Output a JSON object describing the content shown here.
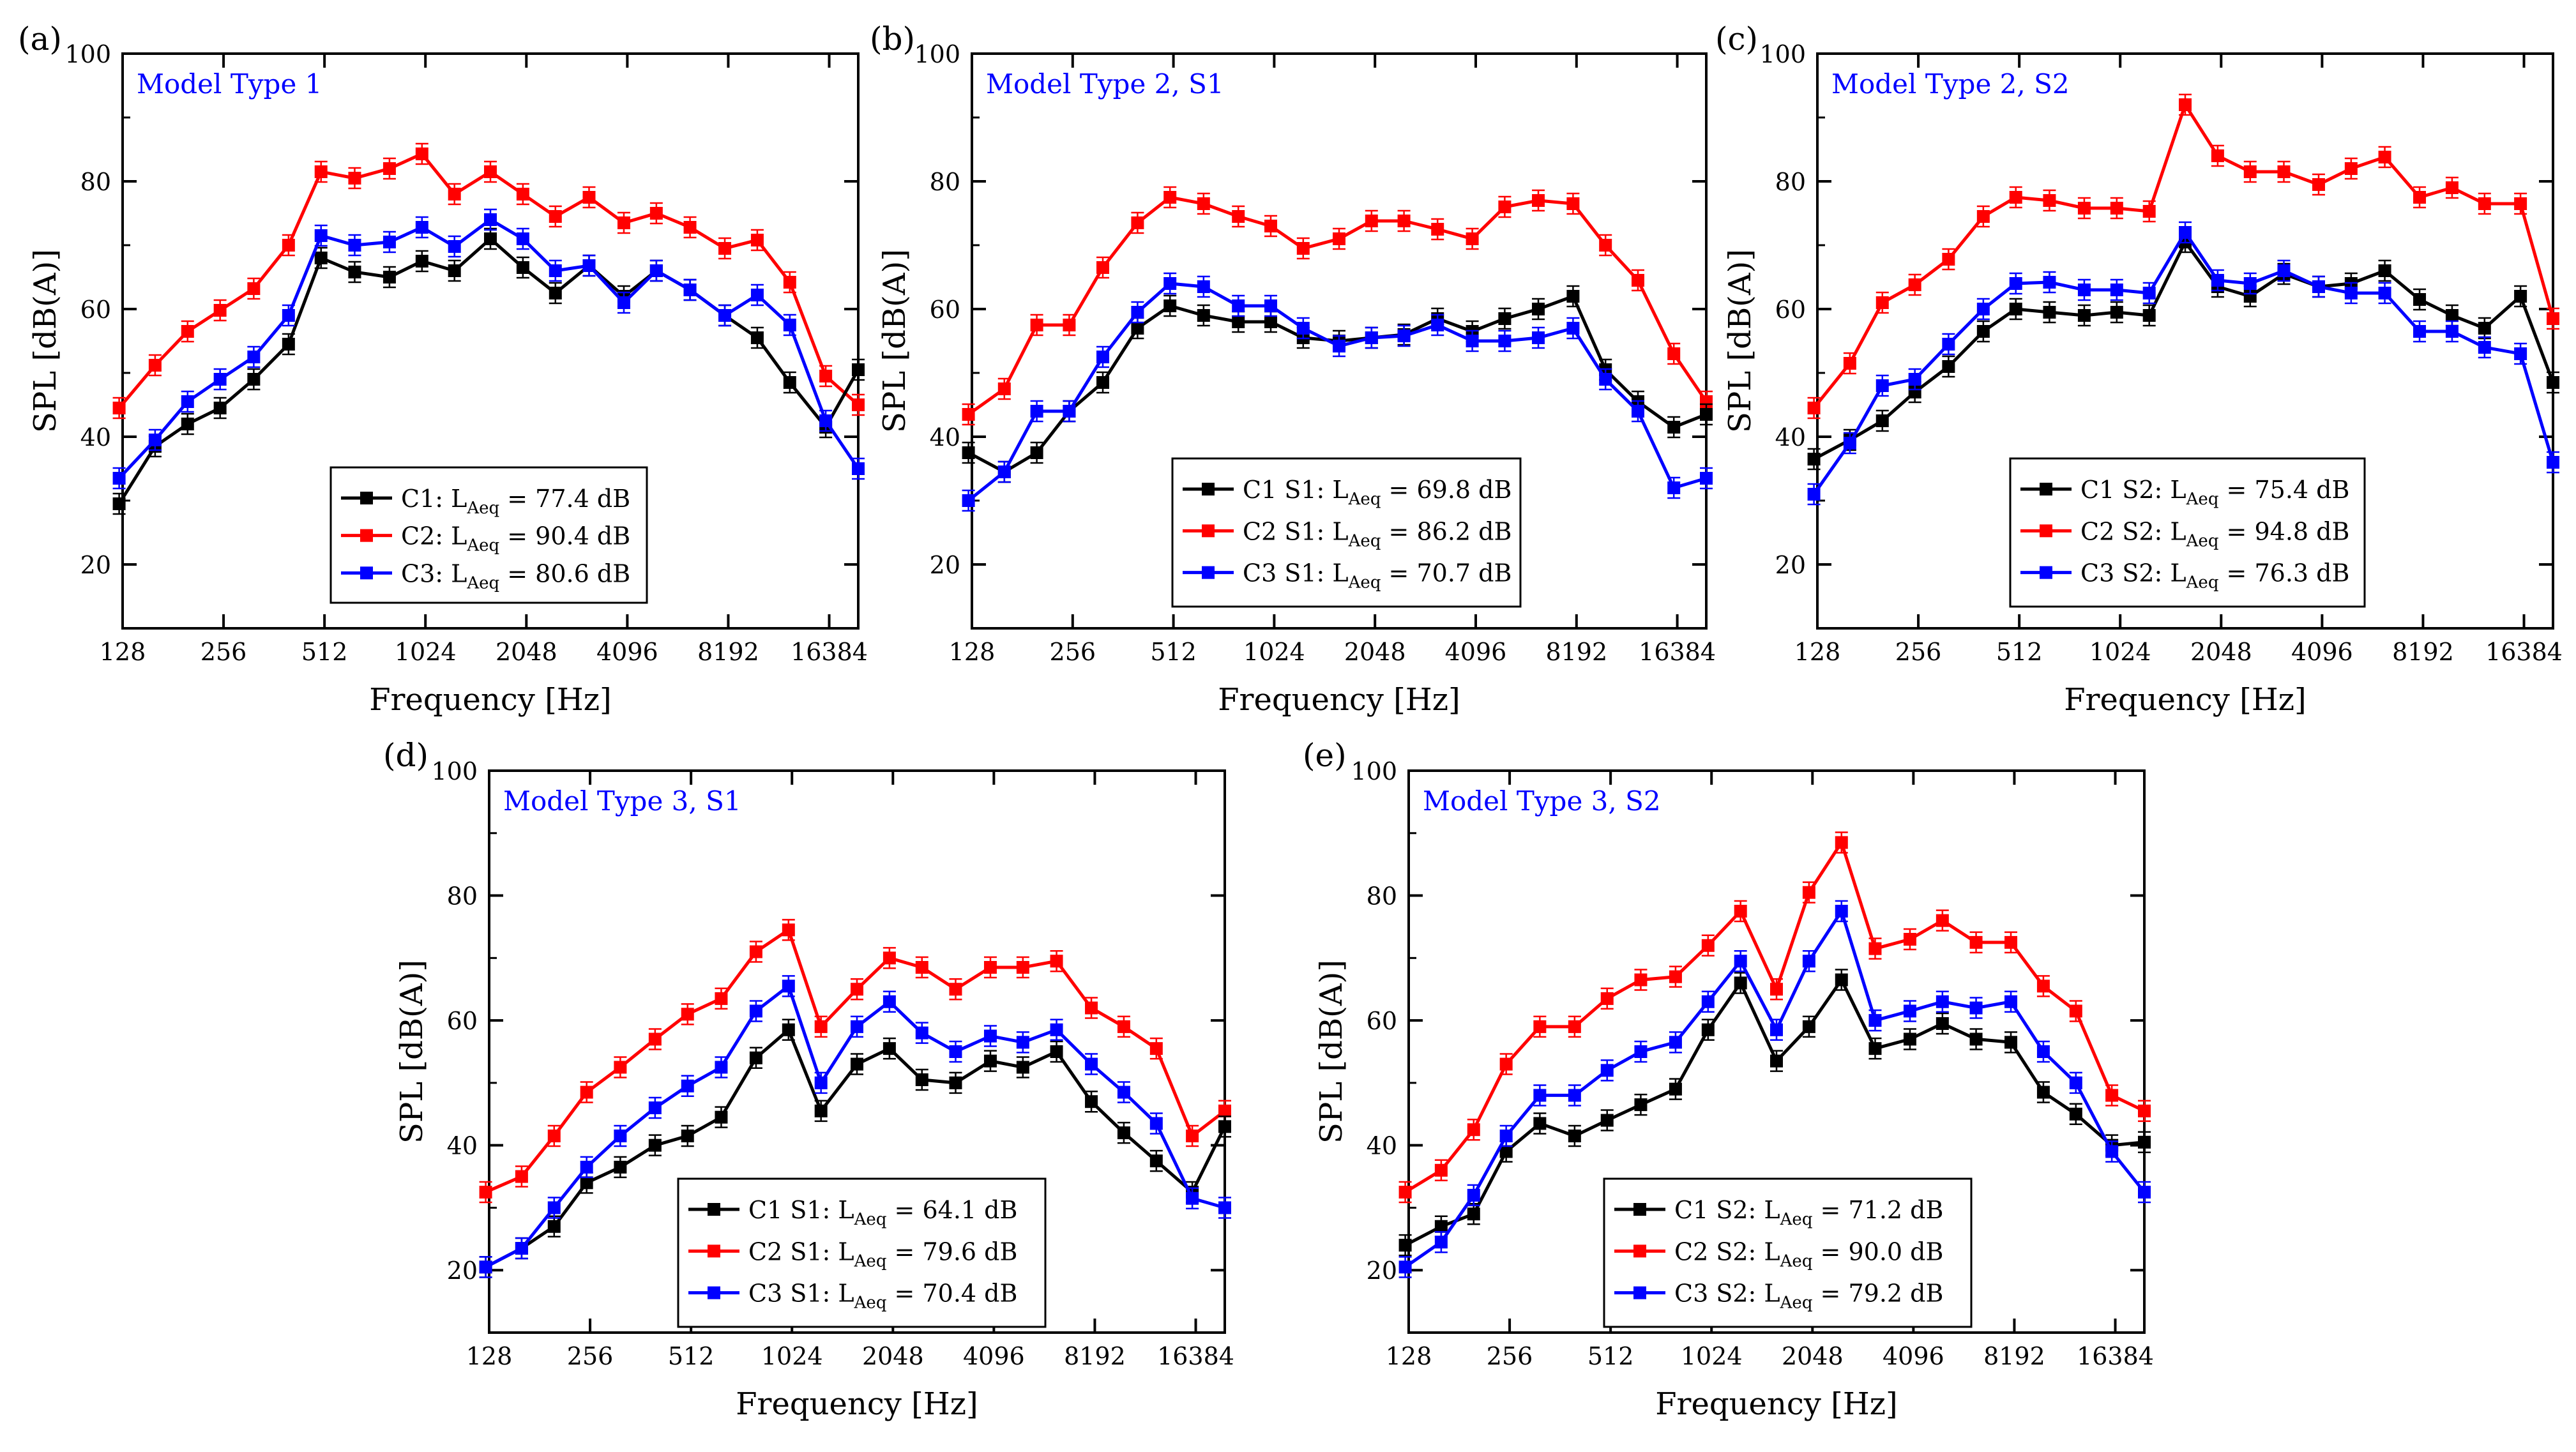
{
  "figure": {
    "x_ticks": [
      "128",
      "256",
      "512",
      "1024",
      "2048",
      "4096",
      "8192",
      "16384"
    ],
    "y_ticks": [
      20,
      40,
      60,
      80,
      100
    ]
  },
  "chart_data": [
    {
      "panel": "(a)",
      "type": "line",
      "title": "Model Type 1",
      "xlabel": "Frequency [Hz]",
      "ylabel": "SPL [dB(A)]",
      "xscale": "log2",
      "xlim": [
        128,
        20000
      ],
      "ylim": [
        10,
        100
      ],
      "legend_position": "bottom-center",
      "x": [
        125,
        160,
        200,
        250,
        315,
        400,
        500,
        630,
        800,
        1000,
        1250,
        1600,
        2000,
        2500,
        3150,
        4000,
        5000,
        6300,
        8000,
        10000,
        12500,
        16000,
        20000
      ],
      "series": [
        {
          "name": "C1",
          "label": "C1: ",
          "leq": " = 77.4 dB",
          "color": "#000000",
          "values": [
            29.5,
            38.5,
            42,
            44.5,
            49,
            54.5,
            68,
            65.8,
            65,
            67.5,
            66,
            71,
            66.5,
            62.5,
            66.8,
            62,
            66,
            63,
            59,
            55.5,
            48.5,
            41.5,
            50.5
          ]
        },
        {
          "name": "C2",
          "label": "C2: ",
          "leq": " = 90.4 dB",
          "color": "#ff0000",
          "values": [
            44.5,
            51.2,
            56.5,
            59.8,
            63.2,
            70,
            81.5,
            80.5,
            82,
            84.3,
            78,
            81.5,
            78,
            74.5,
            77.5,
            73.5,
            75,
            72.8,
            69.5,
            70.8,
            64.2,
            49.5,
            45
          ]
        },
        {
          "name": "C3",
          "label": "C3: ",
          "leq": " = 80.6 dB",
          "color": "#0000ff",
          "values": [
            33.5,
            39.5,
            45.5,
            49,
            52.5,
            59,
            71.5,
            70,
            70.5,
            72.8,
            69.8,
            74,
            71,
            66,
            66.8,
            61,
            66,
            63,
            59,
            62.2,
            57.5,
            42.5,
            35
          ]
        }
      ]
    },
    {
      "panel": "(b)",
      "type": "line",
      "title": "Model Type 2, S1",
      "xlabel": "Frequency [Hz]",
      "ylabel": "SPL [dB(A)]",
      "xscale": "log2",
      "xlim": [
        128,
        20000
      ],
      "ylim": [
        10,
        100
      ],
      "legend_position": "bottom-center",
      "x": [
        125,
        160,
        200,
        250,
        315,
        400,
        500,
        630,
        800,
        1000,
        1250,
        1600,
        2000,
        2500,
        3150,
        4000,
        5000,
        6300,
        8000,
        10000,
        12500,
        16000,
        20000
      ],
      "series": [
        {
          "name": "C1 S1",
          "label": "C1 S1: ",
          "leq": " = 69.8 dB",
          "color": "#000000",
          "values": [
            37.5,
            34.5,
            37.5,
            44,
            48.5,
            57,
            60.5,
            59,
            58,
            58,
            55.5,
            55,
            55.5,
            56,
            58.5,
            56.5,
            58.5,
            60,
            62,
            50.5,
            45.5,
            41.5,
            43.5
          ]
        },
        {
          "name": "C2 S1",
          "label": "C2 S1: ",
          "leq": " = 86.2 dB",
          "color": "#ff0000",
          "values": [
            43.5,
            47.5,
            57.5,
            57.5,
            66.5,
            73.5,
            77.5,
            76.5,
            74.5,
            73,
            69.5,
            71,
            73.8,
            73.8,
            72.5,
            71,
            76,
            77,
            76.5,
            70,
            64.5,
            53,
            45.5
          ]
        },
        {
          "name": "C3 S1",
          "label": "C3 S1: ",
          "leq": " = 70.7 dB",
          "color": "#0000ff",
          "values": [
            30,
            34.5,
            44,
            44,
            52.5,
            59.5,
            64,
            63.5,
            60.5,
            60.5,
            57,
            54.2,
            55.5,
            55.8,
            57.5,
            55,
            55,
            55.5,
            57,
            49,
            44,
            32,
            33.5
          ]
        }
      ]
    },
    {
      "panel": "(c)",
      "type": "line",
      "title": "Model Type 2,  S2",
      "xlabel": "Frequency [Hz]",
      "ylabel": "SPL [dB(A)]",
      "xscale": "log2",
      "xlim": [
        128,
        20000
      ],
      "ylim": [
        10,
        100
      ],
      "legend_position": "bottom-center",
      "x": [
        125,
        160,
        200,
        250,
        315,
        400,
        500,
        630,
        800,
        1000,
        1250,
        1600,
        2000,
        2500,
        3150,
        4000,
        5000,
        6300,
        8000,
        10000,
        12500,
        16000,
        20000
      ],
      "series": [
        {
          "name": "C1 S2",
          "label": "C1 S2: ",
          "leq": " = 75.4 dB",
          "color": "#000000",
          "values": [
            36.5,
            39.5,
            42.5,
            47,
            51,
            56.5,
            60,
            59.5,
            59,
            59.5,
            59,
            70.5,
            63.5,
            62,
            65.5,
            63.5,
            64,
            66,
            61.5,
            59,
            57,
            62,
            48.5
          ]
        },
        {
          "name": "C2 S2",
          "label": "C2 S2: ",
          "leq": " = 94.8 dB",
          "color": "#ff0000",
          "values": [
            44.5,
            51.5,
            61,
            63.8,
            67.8,
            74.5,
            77.5,
            77,
            75.8,
            75.8,
            75.3,
            92,
            84,
            81.5,
            81.5,
            79.5,
            82,
            83.8,
            77.5,
            79,
            76.5,
            76.5,
            58.5
          ]
        },
        {
          "name": "C3 S2",
          "label": "C3 S2: ",
          "leq": " = 76.3 dB",
          "color": "#0000ff",
          "values": [
            31,
            39,
            48,
            49,
            54.5,
            60,
            64,
            64.2,
            63,
            63,
            62.5,
            72,
            64.5,
            64,
            66,
            63.5,
            62.5,
            62.5,
            56.5,
            56.5,
            54,
            53,
            36
          ]
        }
      ]
    },
    {
      "panel": "(d)",
      "type": "line",
      "title": "Model Type 3, S1",
      "xlabel": "Frequency [Hz]",
      "ylabel": "SPL [dB(A)]",
      "xscale": "log2",
      "xlim": [
        128,
        20000
      ],
      "ylim": [
        10,
        100
      ],
      "legend_position": "bottom-center",
      "x": [
        125,
        160,
        200,
        250,
        315,
        400,
        500,
        630,
        800,
        1000,
        1250,
        1600,
        2000,
        2500,
        3150,
        4000,
        5000,
        6300,
        8000,
        10000,
        12500,
        16000,
        20000
      ],
      "series": [
        {
          "name": "C1 S1",
          "label": "C1 S1: ",
          "leq": " = 64.1 dB",
          "color": "#000000",
          "values": [
            20.5,
            23.5,
            27,
            34,
            36.5,
            40,
            41.5,
            44.5,
            54,
            58.5,
            45.5,
            53,
            55.5,
            50.5,
            50,
            53.5,
            52.5,
            55,
            47,
            42,
            37.5,
            32.5,
            43
          ]
        },
        {
          "name": "C2 S1",
          "label": "C2 S1: ",
          "leq": " = 79.6 dB",
          "color": "#ff0000",
          "values": [
            32.5,
            35,
            41.5,
            48.5,
            52.5,
            57,
            61,
            63.5,
            71,
            74.5,
            59,
            65,
            70,
            68.5,
            65,
            68.5,
            68.5,
            69.5,
            62,
            59,
            55.5,
            41.5,
            45.5
          ]
        },
        {
          "name": "C3 S1",
          "label": "C3 S1: ",
          "leq": " = 70.4 dB",
          "color": "#0000ff",
          "values": [
            20.5,
            23.5,
            30,
            36.5,
            41.5,
            46,
            49.5,
            52.5,
            61.5,
            65.5,
            50,
            59,
            63,
            58,
            55,
            57.5,
            56.5,
            58.5,
            53,
            48.5,
            43.5,
            31.5,
            30
          ]
        }
      ]
    },
    {
      "panel": "(e)",
      "type": "line",
      "title": "Model Type 3, S2",
      "xlabel": "Frequency [Hz]",
      "ylabel": "SPL [dB(A)]",
      "xscale": "log2",
      "xlim": [
        128,
        20000
      ],
      "ylim": [
        10,
        100
      ],
      "legend_position": "bottom-center",
      "x": [
        125,
        160,
        200,
        250,
        315,
        400,
        500,
        630,
        800,
        1000,
        1250,
        1600,
        2000,
        2500,
        3150,
        4000,
        5000,
        6300,
        8000,
        10000,
        12500,
        16000,
        20000
      ],
      "series": [
        {
          "name": "C1 S2",
          "label": "C1 S2: ",
          "leq": " = 71.2 dB",
          "color": "#000000",
          "values": [
            24,
            27,
            29,
            39,
            43.5,
            41.5,
            44,
            46.5,
            49,
            58.5,
            66,
            53.5,
            59,
            66.5,
            55.5,
            57,
            59.5,
            57,
            56.5,
            48.5,
            45,
            40,
            40.5
          ]
        },
        {
          "name": "C2 S2",
          "label": "C2 S2: ",
          "leq": " = 90.0 dB",
          "color": "#ff0000",
          "values": [
            32.5,
            36,
            42.5,
            53,
            59,
            59,
            63.5,
            66.5,
            67,
            72,
            77.5,
            65,
            80.5,
            88.5,
            71.5,
            73,
            76,
            72.5,
            72.5,
            65.5,
            61.5,
            48,
            45.5
          ]
        },
        {
          "name": "C3 S2",
          "label": "C3 S2: ",
          "leq": " = 79.2 dB",
          "color": "#0000ff",
          "values": [
            20.5,
            24.5,
            32,
            41.5,
            48,
            48,
            52,
            55,
            56.5,
            63,
            69.5,
            58.5,
            69.5,
            77.5,
            60,
            61.5,
            63,
            62,
            63,
            55,
            50,
            39,
            32.5
          ]
        }
      ]
    }
  ]
}
